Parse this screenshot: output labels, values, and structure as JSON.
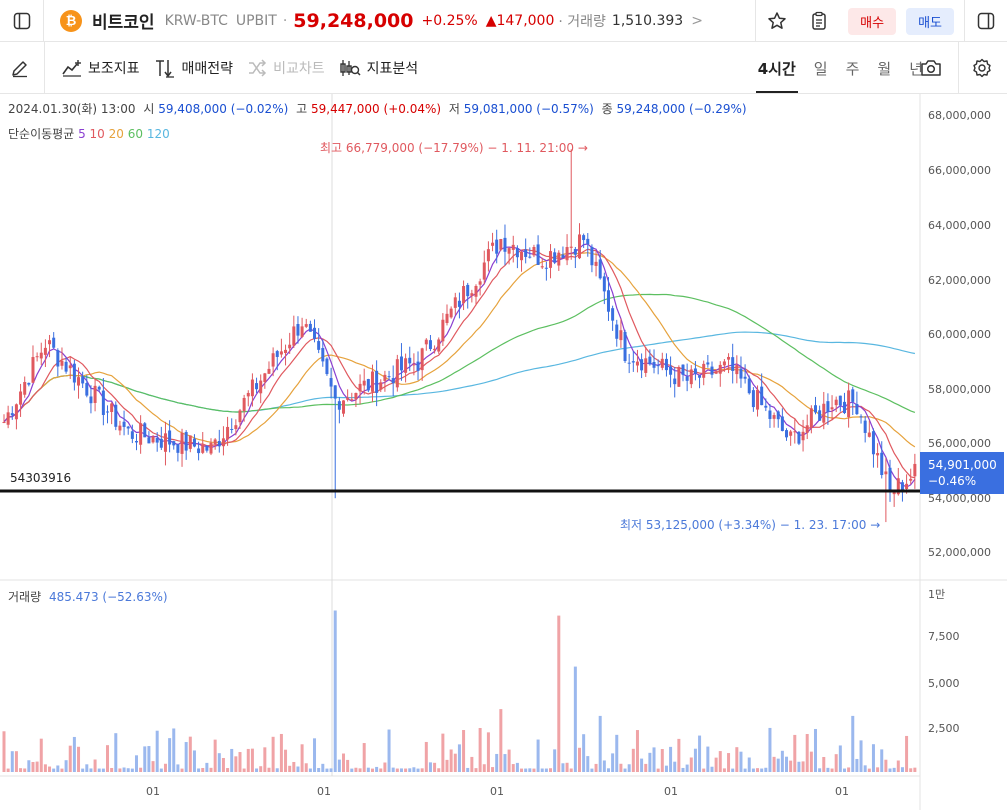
{
  "header": {
    "coin_icon": "₿",
    "coin_name": "비트코인",
    "pair": "KRW-BTC",
    "exchange": "UPBIT",
    "separator": "·",
    "price": "59,248,000",
    "change_pct": "+0.25%",
    "change_amount": "▲147,000",
    "volume_label": "· 거래량",
    "volume_value": "1,510.393",
    "more": ">",
    "buy_label": "매수",
    "sell_label": "매도"
  },
  "toolbar": {
    "indicators": "보조지표",
    "strategy": "매매전략",
    "compare": "비교차트",
    "analysis": "지표분석",
    "periods": [
      "4시간",
      "일",
      "주",
      "월",
      "년"
    ]
  },
  "legend": {
    "date": "2024.01.30(화) 13:00",
    "open_label": "시",
    "open": "59,408,000 (−0.02%)",
    "high_label": "고",
    "high": "59,447,000 (+0.04%)",
    "low_label": "저",
    "low": "59,081,000 (−0.57%)",
    "close_label": "종",
    "close": "59,248,000 (−0.29%)",
    "ma_label": "단순이동평균",
    "ma_periods": [
      "5",
      "10",
      "20",
      "60",
      "120"
    ],
    "ma_colors": [
      "#8a3fd1",
      "#e0595f",
      "#e6a23c",
      "#5cbf60",
      "#59b7e0"
    ]
  },
  "annotations": {
    "horizontal_line_value": "54303916",
    "max_label": "최고 66,779,000 (−17.79%) − 1. 11. 21:00 →",
    "min_label": "최저 53,125,000 (+3.34%) − 1. 23. 17:00 →",
    "current_price": "54,901,000",
    "current_change": "−0.46%"
  },
  "volume": {
    "label": "거래량",
    "value": "485.473 (−52.63%)",
    "axis": [
      "1만",
      "7,500",
      "5,000",
      "2,500"
    ]
  },
  "price_axis": [
    "68,000,000",
    "66,000,000",
    "64,000,000",
    "62,000,000",
    "60,000,000",
    "58,000,000",
    "56,000,000",
    "54,000,000",
    "52,000,000"
  ],
  "time_axis": [
    "01",
    "01",
    "01",
    "01",
    "01"
  ],
  "colors": {
    "up": "#e0595f",
    "down": "#3a6fe0",
    "accent": "#d60000"
  },
  "chart_data": {
    "type": "candlestick",
    "y_range": [
      51500000,
      68500000
    ],
    "key_points": [
      {
        "t": 0,
        "close": 56800000
      },
      {
        "t": 10,
        "close": 59700000
      },
      {
        "t": 30,
        "close": 56400000
      },
      {
        "t": 50,
        "close": 55800000
      },
      {
        "t": 72,
        "close": 60500000
      },
      {
        "t": 80,
        "close": 57600000
      },
      {
        "t": 100,
        "close": 59000000
      },
      {
        "t": 120,
        "close": 63500000
      },
      {
        "t": 130,
        "close": 62800000
      },
      {
        "t": 140,
        "close": 63500000
      },
      {
        "t": 150,
        "close": 59400000
      },
      {
        "t": 165,
        "close": 58300000
      },
      {
        "t": 175,
        "close": 58800000
      },
      {
        "t": 190,
        "close": 56100000
      },
      {
        "t": 200,
        "close": 57600000
      },
      {
        "t": 206,
        "close": 57500000
      },
      {
        "t": 214,
        "close": 54200000
      },
      {
        "t": 220,
        "close": 54900000
      }
    ]
  }
}
